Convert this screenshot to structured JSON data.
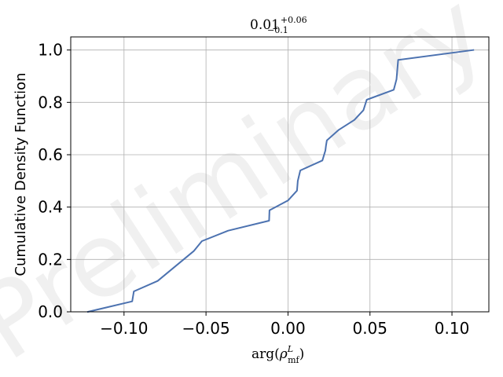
{
  "chart_data": {
    "type": "line",
    "title": {
      "base": "0.01",
      "sup": "+0.06",
      "sub": "−0.1"
    },
    "xlabel": {
      "base": "arg(",
      "rho": "ρ",
      "sup": "L",
      "sub": "mf",
      "close": ")"
    },
    "ylabel": "Cumulative Density Function",
    "watermark": "Preliminary",
    "xlim": [
      -0.1325,
      0.1225
    ],
    "ylim": [
      0.0,
      1.05
    ],
    "xticks": [
      -0.1,
      -0.05,
      0.0,
      0.05,
      0.1
    ],
    "xtick_labels": [
      "−0.10",
      "−0.05",
      "0.00",
      "0.05",
      "0.10"
    ],
    "yticks": [
      0.0,
      0.2,
      0.4,
      0.6,
      0.8,
      1.0
    ],
    "ytick_labels": [
      "0.0",
      "0.2",
      "0.4",
      "0.6",
      "0.8",
      "1.0"
    ],
    "grid": true,
    "line_color": "#4c72b0",
    "series": [
      {
        "x": [
          -0.122,
          -0.095,
          -0.094,
          -0.0795,
          -0.0575,
          -0.0525,
          -0.0365,
          -0.0115,
          -0.0113,
          0.0,
          0.0055,
          0.006,
          0.0075,
          0.021,
          0.0228,
          0.0232,
          0.0237,
          0.031,
          0.0405,
          0.046,
          0.047,
          0.048,
          0.0645,
          0.0662,
          0.0672,
          0.113
        ],
        "y": [
          0.0,
          0.04,
          0.078,
          0.118,
          0.232,
          0.27,
          0.31,
          0.348,
          0.388,
          0.425,
          0.463,
          0.5,
          0.54,
          0.578,
          0.616,
          0.635,
          0.655,
          0.695,
          0.733,
          0.77,
          0.79,
          0.81,
          0.848,
          0.888,
          0.962,
          1.0
        ]
      }
    ]
  }
}
